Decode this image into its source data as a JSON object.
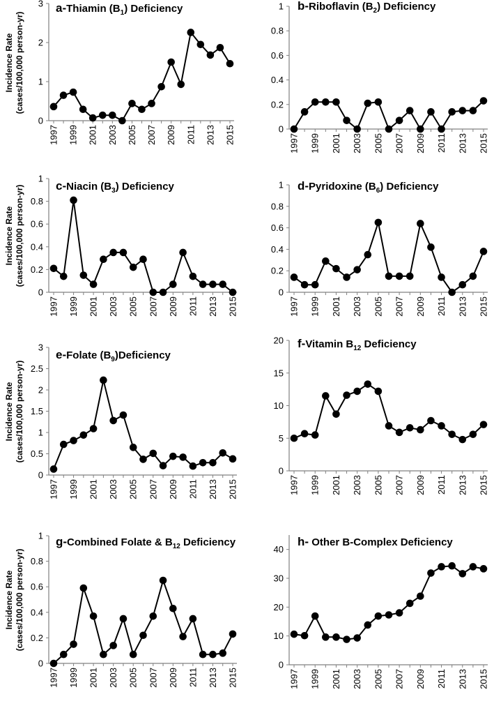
{
  "figure": {
    "ylabel_line1": "Incidence Rate",
    "ylabel_line2": "(cases/100,000 person-yr)"
  },
  "chart_data": [
    {
      "id": "a",
      "type": "line",
      "letter": "a-",
      "title_main": "Thiamin (B",
      "title_sub": "1",
      "title_rest": ") Deficiency",
      "x": [
        1997,
        1998,
        1999,
        2000,
        2001,
        2002,
        2003,
        2004,
        2005,
        2006,
        2007,
        2008,
        2009,
        2010,
        2011,
        2012,
        2013,
        2014,
        2015
      ],
      "values": [
        0.36,
        0.65,
        0.73,
        0.29,
        0.07,
        0.14,
        0.14,
        0.0,
        0.44,
        0.29,
        0.44,
        0.87,
        1.5,
        0.93,
        2.26,
        1.95,
        1.68,
        1.87,
        1.46
      ],
      "ylim": [
        0,
        3
      ],
      "yticks": [
        0,
        1,
        2,
        3
      ],
      "ytick_labels": [
        "0",
        "1",
        "2",
        "3"
      ],
      "xtick_labels": [
        "1997",
        "1999",
        "2001",
        "2003",
        "2005",
        "2007",
        "2009",
        "2011",
        "2013",
        "2015"
      ],
      "xlabel": "",
      "ylabel": "Incidence Rate (cases/100,000 person-yr)"
    },
    {
      "id": "b",
      "type": "line",
      "letter": "b-",
      "title_main": "Riboflavin (B",
      "title_sub": "2",
      "title_rest": ") Deficiency",
      "x": [
        1997,
        1998,
        1999,
        2000,
        2001,
        2002,
        2003,
        2004,
        2005,
        2006,
        2007,
        2008,
        2009,
        2010,
        2011,
        2012,
        2013,
        2014,
        2015
      ],
      "values": [
        0.0,
        0.14,
        0.22,
        0.22,
        0.22,
        0.07,
        0.0,
        0.21,
        0.22,
        0.0,
        0.07,
        0.15,
        0.0,
        0.14,
        0.0,
        0.14,
        0.15,
        0.15,
        0.23
      ],
      "ylim": [
        0,
        1
      ],
      "yticks": [
        0,
        0.2,
        0.4,
        0.6,
        0.8,
        1
      ],
      "ytick_labels": [
        "0",
        "0.2",
        "0.4",
        "0.6",
        "0.8",
        "1"
      ],
      "xtick_labels": [
        "1997",
        "1999",
        "2001",
        "2003",
        "2005",
        "2007",
        "2009",
        "2011",
        "2013",
        "2015"
      ],
      "xlabel": "",
      "ylabel": ""
    },
    {
      "id": "c",
      "type": "line",
      "letter": "c-",
      "title_main": "Niacin (B",
      "title_sub": "3",
      "title_rest": ") Deficiency",
      "x": [
        1997,
        1998,
        1999,
        2000,
        2001,
        2002,
        2003,
        2004,
        2005,
        2006,
        2007,
        2008,
        2009,
        2010,
        2011,
        2012,
        2013,
        2014,
        2015
      ],
      "values": [
        0.21,
        0.14,
        0.81,
        0.15,
        0.07,
        0.29,
        0.35,
        0.35,
        0.22,
        0.29,
        0.0,
        0.0,
        0.07,
        0.35,
        0.14,
        0.07,
        0.07,
        0.07,
        0.0
      ],
      "ylim": [
        0,
        1
      ],
      "yticks": [
        0,
        0.2,
        0.4,
        0.6,
        0.8,
        1
      ],
      "ytick_labels": [
        "0",
        "0.2",
        "0.4",
        "0.6",
        "0.8",
        "1"
      ],
      "xtick_labels": [
        "1997",
        "1999",
        "2001",
        "2003",
        "2005",
        "2007",
        "2009",
        "2011",
        "2013",
        "2015"
      ],
      "xlabel": "",
      "ylabel": "Incidence Rate (cases/100,000 person-yr)"
    },
    {
      "id": "d",
      "type": "line",
      "letter": "d-",
      "title_main": "Pyridoxine (B",
      "title_sub": "6",
      "title_rest": ") Deficiency",
      "x": [
        1997,
        1998,
        1999,
        2000,
        2001,
        2002,
        2003,
        2004,
        2005,
        2006,
        2007,
        2008,
        2009,
        2010,
        2011,
        2012,
        2013,
        2014,
        2015
      ],
      "values": [
        0.14,
        0.07,
        0.07,
        0.29,
        0.22,
        0.14,
        0.21,
        0.35,
        0.65,
        0.15,
        0.15,
        0.15,
        0.64,
        0.42,
        0.14,
        0.0,
        0.07,
        0.15,
        0.38
      ],
      "ylim": [
        0,
        1
      ],
      "yticks": [
        0,
        0.2,
        0.4,
        0.6,
        0.8,
        1
      ],
      "ytick_labels": [
        "0",
        "0.2",
        "0.4",
        "0.6",
        "0.8",
        "1"
      ],
      "xtick_labels": [
        "1997",
        "1999",
        "2001",
        "2003",
        "2005",
        "2007",
        "2009",
        "2011",
        "2013",
        "2015"
      ],
      "xlabel": "",
      "ylabel": ""
    },
    {
      "id": "e",
      "type": "line",
      "letter": "e-",
      "title_main": "Folate (B",
      "title_sub": "9",
      "title_rest": ")Deficiency",
      "x": [
        1997,
        1998,
        1999,
        2000,
        2001,
        2002,
        2003,
        2004,
        2005,
        2006,
        2007,
        2008,
        2009,
        2010,
        2011,
        2012,
        2013,
        2014,
        2015
      ],
      "values": [
        0.14,
        0.72,
        0.81,
        0.94,
        1.09,
        2.23,
        1.28,
        1.41,
        0.65,
        0.37,
        0.51,
        0.22,
        0.44,
        0.42,
        0.21,
        0.29,
        0.29,
        0.52,
        0.38
      ],
      "ylim": [
        0,
        3
      ],
      "yticks": [
        0,
        0.5,
        1,
        1.5,
        2,
        2.5,
        3
      ],
      "ytick_labels": [
        "0",
        "0.5",
        "1",
        "1.5",
        "2",
        "2.5",
        "3"
      ],
      "xtick_labels": [
        "1997",
        "1999",
        "2001",
        "2003",
        "2005",
        "2007",
        "2009",
        "2011",
        "2013",
        "2015"
      ],
      "xlabel": "",
      "ylabel": "Incidence Rate (cases/100,000 person-yr)"
    },
    {
      "id": "f",
      "type": "line",
      "letter": "f-",
      "title_main": "Vitamin B",
      "title_sub": "12",
      "title_rest": " Deficiency",
      "x": [
        1997,
        1998,
        1999,
        2000,
        2001,
        2002,
        2003,
        2004,
        2005,
        2006,
        2007,
        2008,
        2009,
        2010,
        2011,
        2012,
        2013,
        2014,
        2015
      ],
      "values": [
        5.0,
        5.7,
        5.5,
        11.5,
        8.7,
        11.6,
        12.2,
        13.3,
        12.2,
        6.9,
        5.9,
        6.6,
        6.3,
        7.7,
        6.9,
        5.6,
        4.8,
        5.6,
        7.1
      ],
      "ylim": [
        0,
        20
      ],
      "yticks": [
        0,
        5,
        10,
        15,
        20
      ],
      "ytick_labels": [
        "0",
        "5",
        "10",
        "15",
        "20"
      ],
      "xtick_labels": [
        "1997",
        "1999",
        "2001",
        "2003",
        "2005",
        "2007",
        "2009",
        "2011",
        "2013",
        "2015"
      ],
      "xlabel": "",
      "ylabel": ""
    },
    {
      "id": "g",
      "type": "line",
      "letter": "g-",
      "title_main": "Combined Folate & B",
      "title_sub": "12",
      "title_rest": " Deficiency",
      "x": [
        1997,
        1998,
        1999,
        2000,
        2001,
        2002,
        2003,
        2004,
        2005,
        2006,
        2007,
        2008,
        2009,
        2010,
        2011,
        2012,
        2013,
        2014,
        2015
      ],
      "values": [
        0.0,
        0.07,
        0.15,
        0.59,
        0.37,
        0.07,
        0.14,
        0.35,
        0.07,
        0.22,
        0.37,
        0.65,
        0.43,
        0.21,
        0.35,
        0.07,
        0.07,
        0.08,
        0.23
      ],
      "ylim": [
        0,
        1
      ],
      "yticks": [
        0,
        0.2,
        0.4,
        0.6,
        0.8,
        1
      ],
      "ytick_labels": [
        "0",
        "0.2",
        "0.4",
        "0.6",
        "0.8",
        "1"
      ],
      "xtick_labels": [
        "1997",
        "1999",
        "2001",
        "2003",
        "2005",
        "2007",
        "2009",
        "2011",
        "2013",
        "2015"
      ],
      "xlabel": "",
      "ylabel": "Incidence Rate (cases/100,000 person-yr)"
    },
    {
      "id": "h",
      "type": "line",
      "letter": "h-",
      "title_main": " Other B-Complex Deficiency",
      "title_sub": "",
      "title_rest": "",
      "x": [
        1997,
        1998,
        1999,
        2000,
        2001,
        2002,
        2003,
        2004,
        2005,
        2006,
        2007,
        2008,
        2009,
        2010,
        2011,
        2012,
        2013,
        2014,
        2015
      ],
      "values": [
        10.6,
        10.1,
        16.9,
        9.6,
        9.6,
        8.8,
        9.3,
        13.8,
        16.9,
        17.3,
        18.0,
        21.3,
        23.8,
        31.8,
        34.0,
        34.3,
        31.6,
        34.0,
        33.3
      ],
      "ylim": [
        0,
        45
      ],
      "yticks": [
        0,
        10,
        20,
        30,
        40
      ],
      "ytick_labels": [
        "0",
        "10",
        "20",
        "30",
        "40"
      ],
      "xtick_labels": [
        "1997",
        "1999",
        "2001",
        "2003",
        "2005",
        "2007",
        "2009",
        "2011",
        "2013",
        "2015"
      ],
      "xlabel": "",
      "ylabel": ""
    }
  ]
}
